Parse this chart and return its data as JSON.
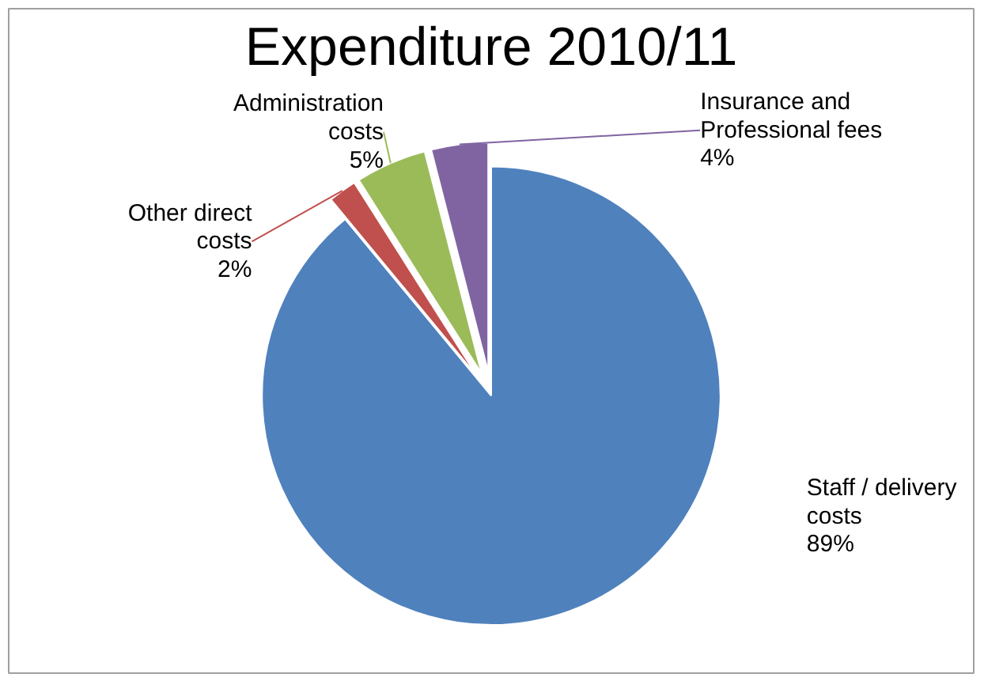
{
  "chart_data": {
    "type": "pie",
    "title": "Expenditure 2010/11",
    "categories": [
      "Staff / delivery costs",
      "Other direct costs",
      "Administration costs",
      "Insurance and Professional fees"
    ],
    "values": [
      89,
      2,
      5,
      4
    ],
    "value_labels": [
      "89%",
      "2%",
      "5%",
      "4%"
    ],
    "colors": [
      "#4f81bd",
      "#c0504d",
      "#9bbb59",
      "#8064a2"
    ]
  }
}
